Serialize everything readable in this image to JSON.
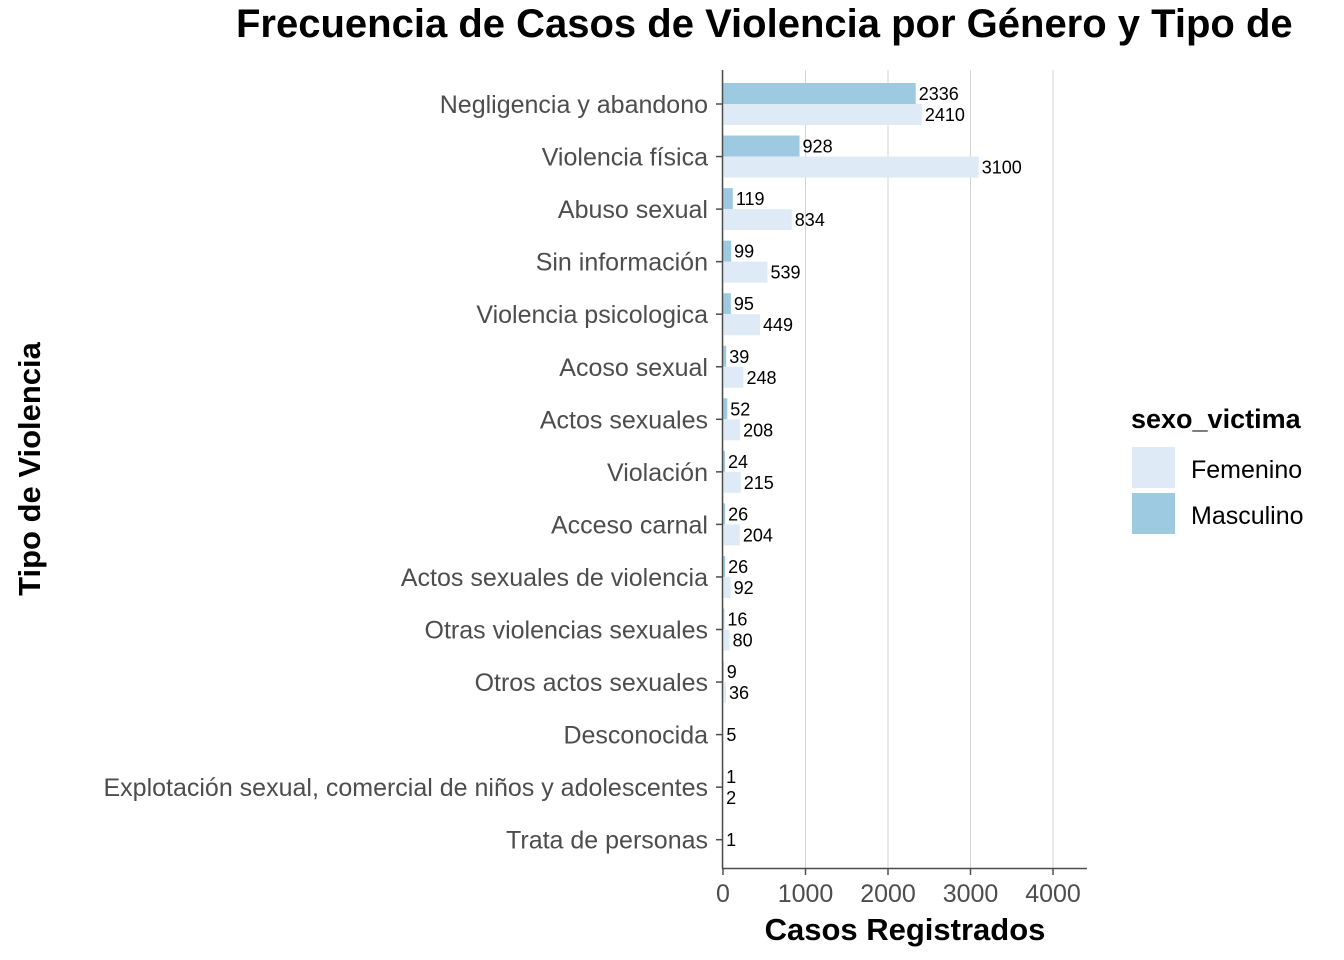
{
  "chart_data": {
    "type": "bar",
    "orientation": "horizontal",
    "title": "Frecuencia de Casos de Violencia por Género y Tipo de",
    "xlabel": "Casos Registrados",
    "ylabel": "Tipo de Violencia",
    "xlim": [
      0,
      4400
    ],
    "xticks": [
      0,
      1000,
      2000,
      3000,
      4000
    ],
    "grid": "vertical major",
    "legend_position": "right",
    "legend_title": "sexo_victima",
    "categories": [
      "Negligencia y abandono",
      "Violencia física",
      "Abuso sexual",
      "Sin información",
      "Violencia psicologica",
      "Acoso sexual",
      "Actos sexuales",
      "Violación",
      "Acceso carnal",
      "Actos sexuales de violencia",
      "Otras violencias sexuales",
      "Otros actos sexuales",
      "Desconocida",
      "Explotación sexual, comercial de niños y adolescentes",
      "Trata de personas"
    ],
    "series": [
      {
        "name": "Femenino",
        "color": "#deebf7",
        "values": [
          2410,
          3100,
          834,
          539,
          449,
          248,
          208,
          215,
          204,
          92,
          80,
          36,
          5,
          2,
          1
        ]
      },
      {
        "name": "Masculino",
        "color": "#9ecae1",
        "values": [
          2336,
          928,
          119,
          99,
          95,
          39,
          52,
          24,
          26,
          26,
          16,
          9,
          null,
          1,
          null
        ]
      }
    ]
  }
}
